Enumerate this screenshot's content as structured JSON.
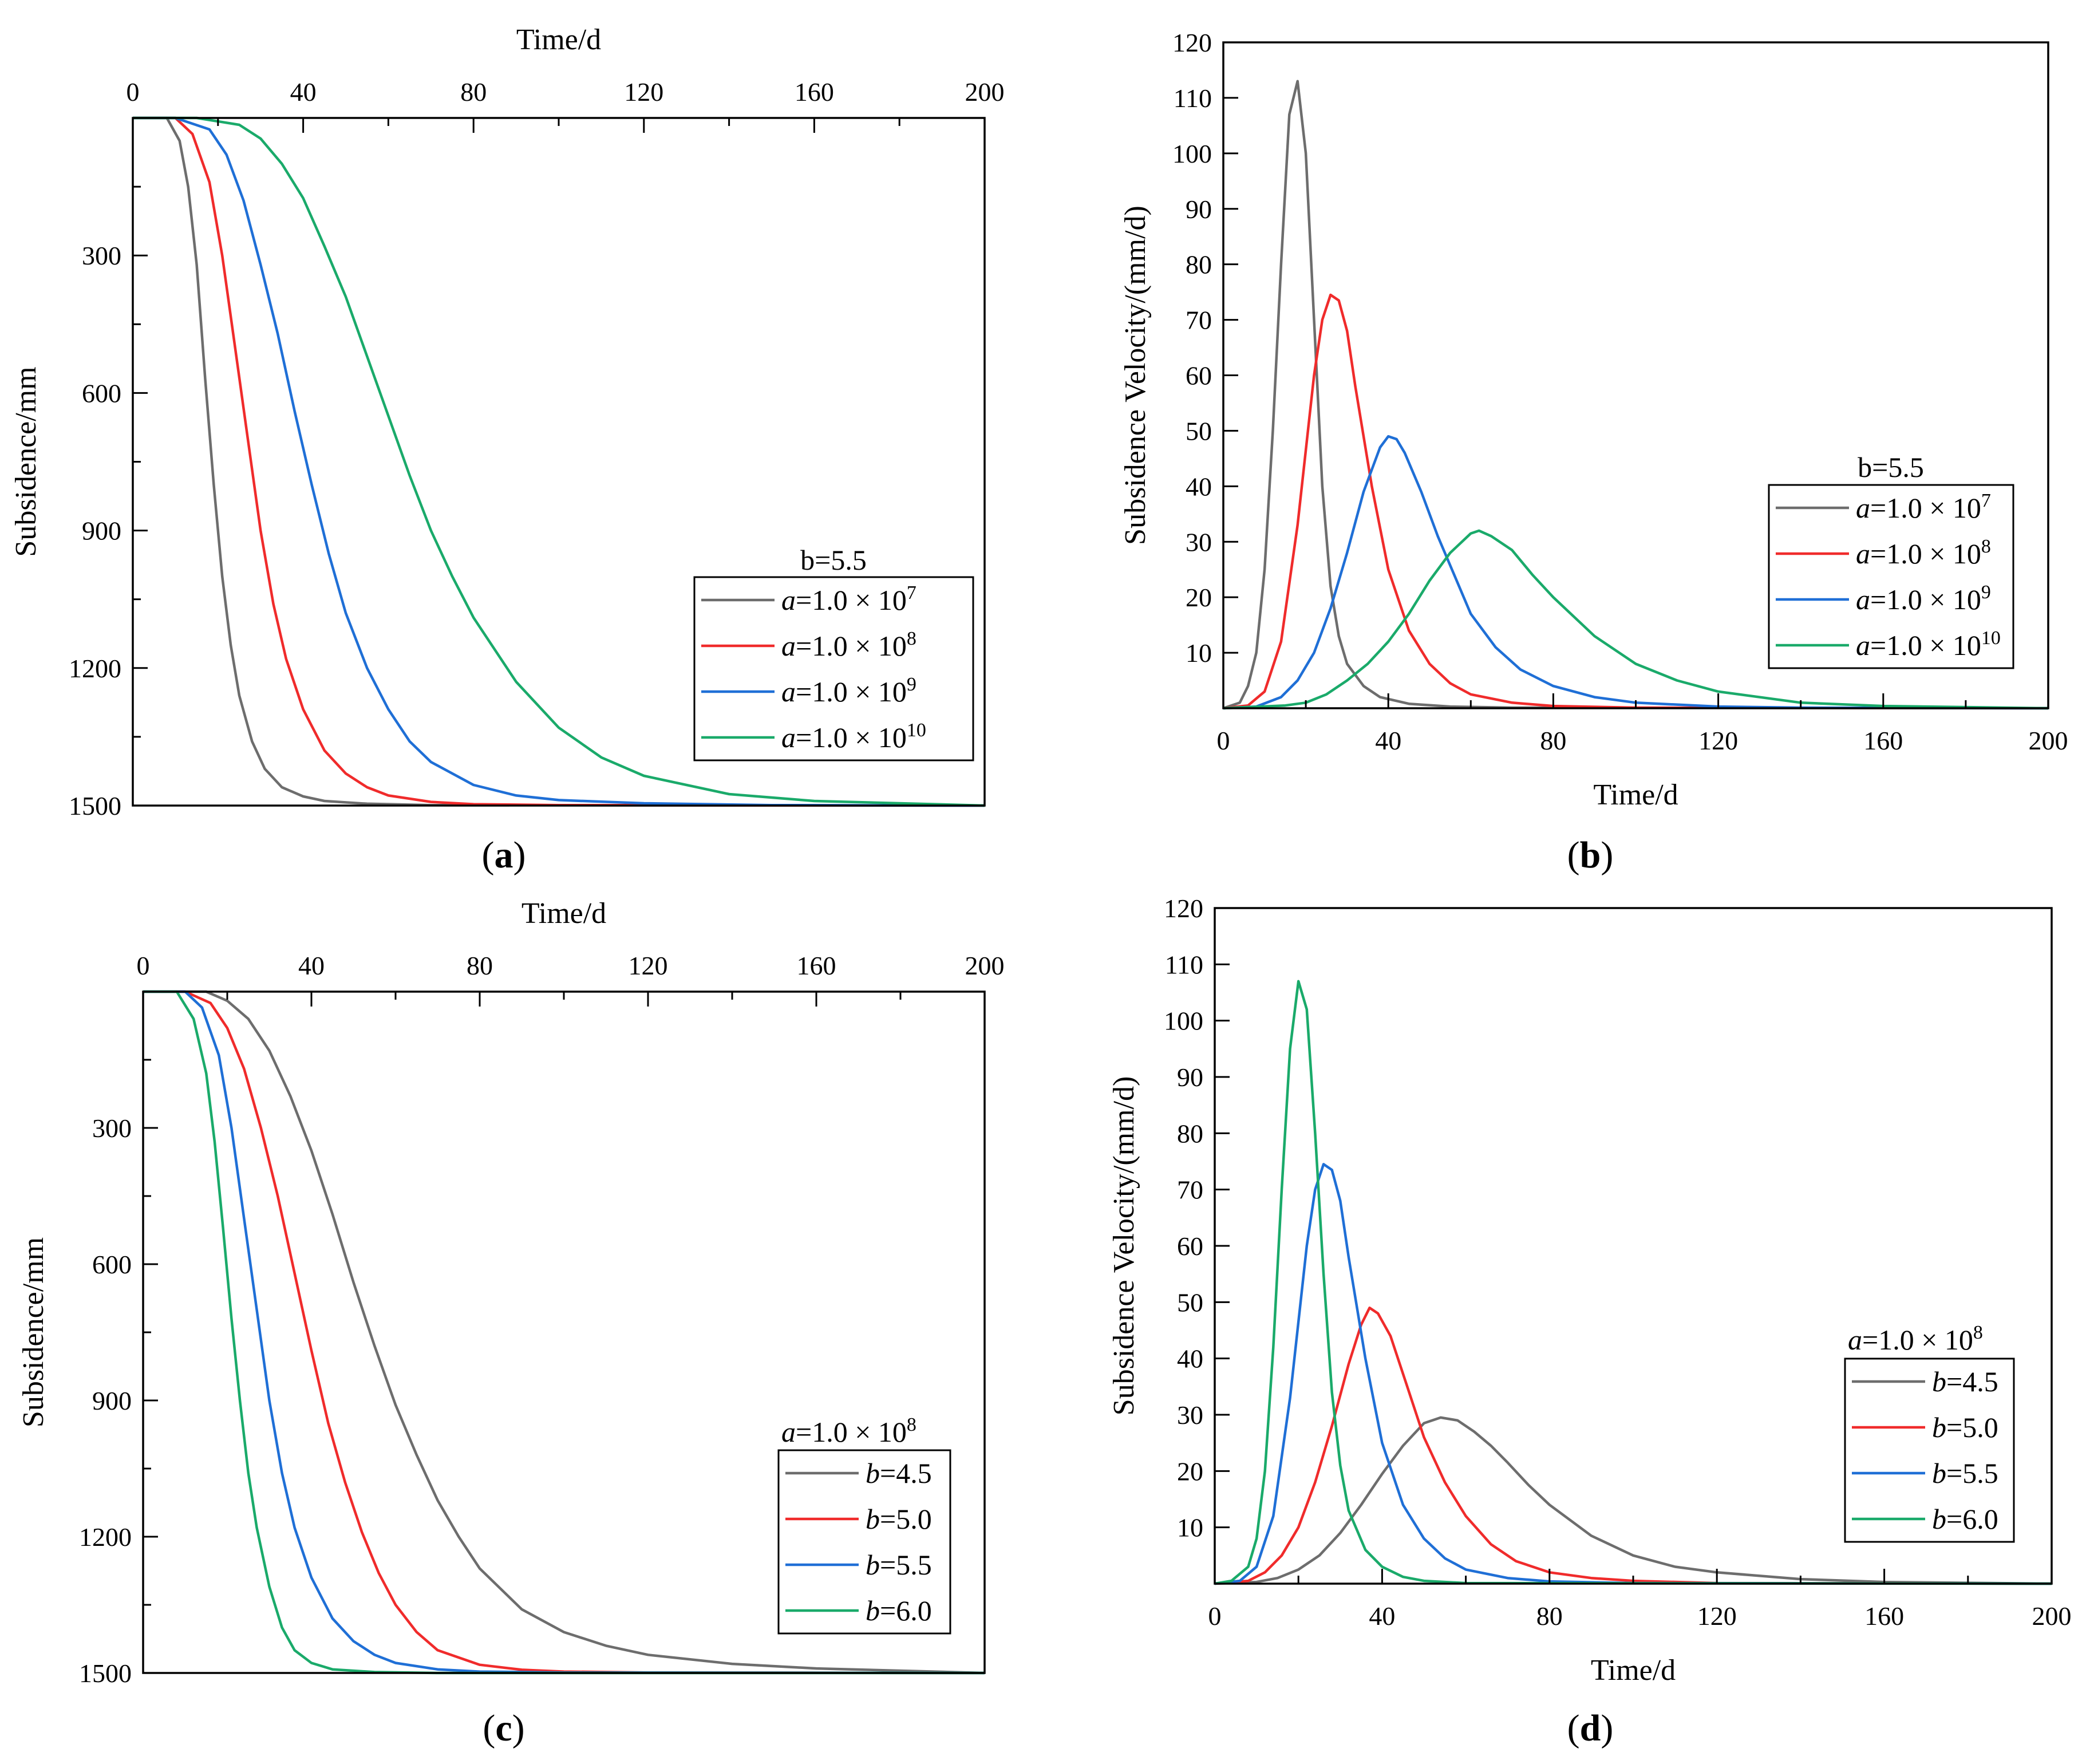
{
  "colors": {
    "gray": "#6d6d6d",
    "red": "#f02b2b",
    "blue": "#1f6fd6",
    "green": "#1aaa6a"
  },
  "chart_data": [
    {
      "id": "a",
      "type": "line",
      "caption": "a",
      "xlabel": "Time/d",
      "ylabel": "Subsidence/mm",
      "xlim": [
        0,
        200
      ],
      "ylim": [
        0,
        1500
      ],
      "y_inverted": true,
      "x_axis_position": "top",
      "xticks": [
        "0",
        "40",
        "80",
        "120",
        "160",
        "200"
      ],
      "yticks": [
        "300",
        "600",
        "900",
        "1200",
        "1500"
      ],
      "legend_title": "b=5.5",
      "legend_position": "bottom-right",
      "series": [
        {
          "name_prefix": "a",
          "name_mid": "=1.0 × 10",
          "name_sup": "7",
          "color": "gray",
          "x": [
            0,
            8,
            11,
            13,
            15,
            17,
            19,
            21,
            23,
            25,
            28,
            31,
            35,
            40,
            45,
            55,
            70,
            200
          ],
          "y": [
            0,
            0,
            50,
            150,
            320,
            570,
            800,
            1000,
            1150,
            1260,
            1360,
            1420,
            1460,
            1480,
            1490,
            1496,
            1499,
            1500
          ]
        },
        {
          "name_prefix": "a",
          "name_mid": "=1.0 × 10",
          "name_sup": "8",
          "color": "red",
          "x": [
            0,
            10,
            14,
            18,
            21,
            24,
            27,
            30,
            33,
            36,
            40,
            45,
            50,
            55,
            60,
            70,
            80,
            100,
            200
          ],
          "y": [
            0,
            0,
            35,
            140,
            300,
            500,
            700,
            900,
            1060,
            1180,
            1290,
            1380,
            1430,
            1460,
            1478,
            1492,
            1497,
            1499,
            1500
          ]
        },
        {
          "name_prefix": "a",
          "name_mid": "=1.0 × 10",
          "name_sup": "9",
          "color": "blue",
          "x": [
            0,
            10,
            18,
            22,
            26,
            30,
            34,
            38,
            42,
            46,
            50,
            55,
            60,
            65,
            70,
            80,
            90,
            100,
            120,
            150,
            200
          ],
          "y": [
            0,
            0,
            25,
            80,
            180,
            320,
            470,
            640,
            800,
            950,
            1080,
            1200,
            1290,
            1360,
            1405,
            1455,
            1478,
            1488,
            1495,
            1499,
            1500
          ]
        },
        {
          "name_prefix": "a",
          "name_mid": "=1.0 × 10",
          "name_sup": "10",
          "color": "green",
          "x": [
            0,
            15,
            25,
            30,
            35,
            40,
            45,
            50,
            55,
            60,
            65,
            70,
            75,
            80,
            90,
            100,
            110,
            120,
            140,
            160,
            200
          ],
          "y": [
            0,
            0,
            15,
            45,
            100,
            175,
            280,
            390,
            520,
            650,
            780,
            900,
            1000,
            1090,
            1230,
            1330,
            1395,
            1435,
            1475,
            1490,
            1500
          ]
        }
      ]
    },
    {
      "id": "b",
      "type": "line",
      "caption": "b",
      "xlabel": "Time/d",
      "ylabel": "Subsidence Velocity/(mm/d)",
      "xlim": [
        0,
        200
      ],
      "ylim": [
        0,
        120
      ],
      "y_inverted": false,
      "x_axis_position": "bottom",
      "xticks": [
        "0",
        "40",
        "80",
        "120",
        "160",
        "200"
      ],
      "yticks": [
        "10",
        "20",
        "30",
        "40",
        "50",
        "60",
        "70",
        "80",
        "90",
        "100",
        "110",
        "120"
      ],
      "legend_title": "b=5.5",
      "legend_position": "middle-right",
      "series": [
        {
          "name_prefix": "a",
          "name_mid": "=1.0 × 10",
          "name_sup": "7",
          "color": "gray",
          "x": [
            0,
            4,
            6,
            8,
            10,
            12,
            14,
            16,
            18,
            20,
            22,
            24,
            26,
            28,
            30,
            34,
            38,
            45,
            55,
            70,
            200
          ],
          "y": [
            0,
            1,
            4,
            10,
            25,
            50,
            80,
            107,
            113,
            100,
            70,
            40,
            22,
            13,
            8,
            4,
            2,
            0.8,
            0.3,
            0.1,
            0
          ]
        },
        {
          "name_prefix": "a",
          "name_mid": "=1.0 × 10",
          "name_sup": "8",
          "color": "red",
          "x": [
            0,
            6,
            10,
            14,
            18,
            22,
            24,
            26,
            28,
            30,
            32,
            36,
            40,
            45,
            50,
            55,
            60,
            70,
            80,
            100,
            200
          ],
          "y": [
            0,
            0.5,
            3,
            12,
            33,
            60,
            70,
            74.5,
            73.5,
            68,
            58,
            40,
            25,
            14,
            8,
            4.5,
            2.5,
            1,
            0.4,
            0.1,
            0
          ]
        },
        {
          "name_prefix": "a",
          "name_mid": "=1.0 × 10",
          "name_sup": "9",
          "color": "blue",
          "x": [
            0,
            8,
            14,
            18,
            22,
            26,
            30,
            34,
            38,
            40,
            42,
            44,
            48,
            52,
            56,
            60,
            66,
            72,
            80,
            90,
            100,
            120,
            140,
            200
          ],
          "y": [
            0,
            0.3,
            2,
            5,
            10,
            18,
            28,
            39,
            47,
            49,
            48.5,
            46,
            39,
            31,
            24,
            17,
            11,
            7,
            4,
            2,
            1,
            0.3,
            0.1,
            0
          ]
        },
        {
          "name_prefix": "a",
          "name_mid": "=1.0 × 10",
          "name_sup": "10",
          "color": "green",
          "x": [
            0,
            15,
            20,
            25,
            30,
            35,
            40,
            45,
            50,
            55,
            60,
            62,
            65,
            70,
            75,
            80,
            90,
            100,
            110,
            120,
            140,
            160,
            200
          ],
          "y": [
            0,
            0.5,
            1,
            2.5,
            5,
            8,
            12,
            17,
            23,
            28,
            31.5,
            32,
            31,
            28.5,
            24,
            20,
            13,
            8,
            5,
            3,
            1,
            0.4,
            0
          ]
        }
      ]
    },
    {
      "id": "c",
      "type": "line",
      "caption": "c",
      "xlabel": "Time/d",
      "ylabel": "Subsidence/mm",
      "xlim": [
        0,
        200
      ],
      "ylim": [
        0,
        1500
      ],
      "y_inverted": true,
      "x_axis_position": "top",
      "xticks": [
        "0",
        "40",
        "80",
        "120",
        "160",
        "200"
      ],
      "yticks": [
        "300",
        "600",
        "900",
        "1200",
        "1500"
      ],
      "legend_title_prefix": "a",
      "legend_title_mid": "=1.0 × 10",
      "legend_title_sup": "8",
      "legend_position": "bottom-right",
      "series": [
        {
          "name_prefix": "b",
          "name_mid": "=4.5",
          "name_sup": "",
          "color": "gray",
          "x": [
            0,
            15,
            20,
            25,
            30,
            35,
            40,
            45,
            50,
            55,
            60,
            65,
            70,
            75,
            80,
            90,
            100,
            110,
            120,
            140,
            160,
            200
          ],
          "y": [
            0,
            0,
            20,
            60,
            130,
            230,
            350,
            490,
            640,
            780,
            910,
            1020,
            1120,
            1200,
            1270,
            1360,
            1410,
            1440,
            1460,
            1480,
            1490,
            1500
          ]
        },
        {
          "name_prefix": "b",
          "name_mid": "=5.0",
          "name_sup": "",
          "color": "red",
          "x": [
            0,
            10,
            16,
            20,
            24,
            28,
            32,
            36,
            40,
            44,
            48,
            52,
            56,
            60,
            65,
            70,
            80,
            90,
            100,
            120,
            200
          ],
          "y": [
            0,
            0,
            25,
            80,
            170,
            300,
            450,
            620,
            790,
            950,
            1080,
            1190,
            1280,
            1350,
            1410,
            1450,
            1482,
            1493,
            1497,
            1499,
            1500
          ]
        },
        {
          "name_prefix": "b",
          "name_mid": "=5.5",
          "name_sup": "",
          "color": "blue",
          "x": [
            0,
            10,
            14,
            18,
            21,
            24,
            27,
            30,
            33,
            36,
            40,
            45,
            50,
            55,
            60,
            70,
            80,
            100,
            200
          ],
          "y": [
            0,
            0,
            35,
            140,
            300,
            500,
            700,
            900,
            1060,
            1180,
            1290,
            1380,
            1430,
            1460,
            1478,
            1492,
            1497,
            1499,
            1500
          ]
        },
        {
          "name_prefix": "b",
          "name_mid": "=6.0",
          "name_sup": "",
          "color": "green",
          "x": [
            0,
            8,
            12,
            15,
            17,
            19,
            21,
            23,
            25,
            27,
            30,
            33,
            36,
            40,
            45,
            55,
            70,
            200
          ],
          "y": [
            0,
            0,
            60,
            180,
            330,
            520,
            720,
            900,
            1060,
            1180,
            1310,
            1400,
            1450,
            1478,
            1492,
            1498,
            1500,
            1500
          ]
        }
      ]
    },
    {
      "id": "d",
      "type": "line",
      "caption": "d",
      "xlabel": "Time/d",
      "ylabel": "Subsidence Velocity/(mm/d)",
      "xlim": [
        0,
        200
      ],
      "ylim": [
        0,
        120
      ],
      "y_inverted": false,
      "x_axis_position": "bottom",
      "xticks": [
        "0",
        "40",
        "80",
        "120",
        "160",
        "200"
      ],
      "yticks": [
        "10",
        "20",
        "30",
        "40",
        "50",
        "60",
        "70",
        "80",
        "90",
        "100",
        "110",
        "120"
      ],
      "legend_title_prefix": "a",
      "legend_title_mid": "=1.0 × 10",
      "legend_title_sup": "8",
      "legend_position": "bottom-right",
      "series": [
        {
          "name_prefix": "b",
          "name_mid": "=4.5",
          "name_sup": "",
          "color": "gray",
          "x": [
            0,
            10,
            15,
            20,
            25,
            30,
            35,
            40,
            45,
            50,
            54,
            58,
            62,
            66,
            70,
            75,
            80,
            90,
            100,
            110,
            120,
            140,
            160,
            200
          ],
          "y": [
            0,
            0.3,
            1,
            2.5,
            5,
            9,
            14,
            19.5,
            24.5,
            28.5,
            29.5,
            29,
            27,
            24.5,
            21.5,
            17.5,
            14,
            8.5,
            5,
            3,
            2,
            0.8,
            0.3,
            0
          ]
        },
        {
          "name_prefix": "b",
          "name_mid": "=5.0",
          "name_sup": "",
          "color": "red",
          "x": [
            0,
            8,
            12,
            16,
            20,
            24,
            28,
            32,
            35,
            37,
            39,
            42,
            46,
            50,
            55,
            60,
            66,
            72,
            80,
            90,
            100,
            120,
            200
          ],
          "y": [
            0,
            0.5,
            2,
            5,
            10,
            18,
            28,
            39,
            46,
            49,
            48,
            44,
            35,
            26,
            18,
            12,
            7,
            4,
            2,
            1,
            0.5,
            0.1,
            0
          ]
        },
        {
          "name_prefix": "b",
          "name_mid": "=5.5",
          "name_sup": "",
          "color": "blue",
          "x": [
            0,
            6,
            10,
            14,
            18,
            22,
            24,
            26,
            28,
            30,
            32,
            36,
            40,
            45,
            50,
            55,
            60,
            70,
            80,
            100,
            200
          ],
          "y": [
            0,
            0.5,
            3,
            12,
            33,
            60,
            70,
            74.5,
            73.5,
            68,
            58,
            40,
            25,
            14,
            8,
            4.5,
            2.5,
            1,
            0.4,
            0.1,
            0
          ]
        },
        {
          "name_prefix": "b",
          "name_mid": "=6.0",
          "name_sup": "",
          "color": "green",
          "x": [
            0,
            4,
            8,
            10,
            12,
            14,
            16,
            18,
            20,
            22,
            24,
            26,
            28,
            30,
            32,
            36,
            40,
            45,
            50,
            60,
            200
          ],
          "y": [
            0,
            0.5,
            3,
            8,
            20,
            42,
            70,
            95,
            107,
            102,
            80,
            55,
            34,
            21,
            13,
            6,
            3,
            1.2,
            0.5,
            0.1,
            0
          ]
        }
      ]
    }
  ]
}
